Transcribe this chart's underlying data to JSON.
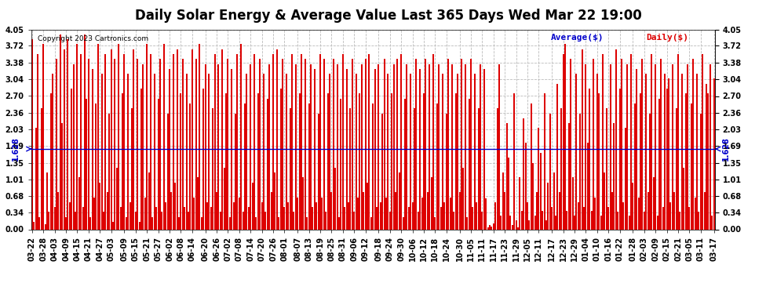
{
  "title": "Daily Solar Energy & Average Value Last 365 Days Wed Mar 22 19:00",
  "copyright": "Copyright 2023 Cartronics.com",
  "legend_average": "Average($)",
  "legend_daily": "Daily($)",
  "average_value": 1.628,
  "average_label": "1.628",
  "ylim": [
    0.0,
    4.05
  ],
  "yticks": [
    0.0,
    0.34,
    0.68,
    1.01,
    1.35,
    1.69,
    2.03,
    2.36,
    2.7,
    3.04,
    3.38,
    3.72,
    4.05
  ],
  "bar_color": "#dd0000",
  "average_line_color": "#0000cc",
  "background_color": "#ffffff",
  "grid_color": "#bbbbbb",
  "title_fontsize": 12,
  "tick_label_fontsize": 7,
  "x_labels": [
    "03-22",
    "03-28",
    "04-03",
    "04-09",
    "04-15",
    "04-21",
    "04-27",
    "05-03",
    "05-09",
    "05-15",
    "05-21",
    "05-27",
    "06-02",
    "06-08",
    "06-14",
    "06-20",
    "06-26",
    "07-02",
    "07-08",
    "07-14",
    "07-20",
    "07-26",
    "08-01",
    "08-07",
    "08-13",
    "08-19",
    "08-25",
    "08-31",
    "09-06",
    "09-12",
    "09-18",
    "09-24",
    "09-30",
    "10-06",
    "10-12",
    "10-18",
    "10-24",
    "10-30",
    "11-05",
    "11-11",
    "11-17",
    "11-23",
    "11-29",
    "12-05",
    "12-11",
    "12-17",
    "12-23",
    "12-29",
    "01-04",
    "01-10",
    "01-16",
    "01-22",
    "01-28",
    "02-03",
    "02-09",
    "02-15",
    "02-21",
    "03-05",
    "03-11",
    "03-17"
  ],
  "daily_values": [
    3.85,
    0.15,
    2.05,
    3.55,
    0.25,
    2.45,
    3.75,
    0.1,
    1.15,
    0.35,
    2.75,
    3.15,
    0.45,
    3.45,
    0.75,
    3.95,
    2.15,
    3.65,
    0.25,
    3.85,
    0.55,
    2.85,
    3.35,
    0.35,
    3.75,
    1.05,
    3.55,
    0.45,
    3.95,
    2.65,
    3.45,
    0.25,
    3.25,
    0.65,
    2.55,
    3.75,
    0.95,
    3.15,
    0.35,
    3.55,
    0.75,
    2.35,
    3.65,
    0.15,
    3.45,
    1.25,
    3.75,
    0.45,
    2.75,
    3.55,
    0.25,
    3.15,
    0.55,
    2.45,
    3.65,
    0.35,
    3.45,
    0.15,
    2.85,
    3.35,
    0.65,
    3.75,
    1.15,
    3.55,
    0.25,
    3.15,
    0.45,
    2.65,
    3.45,
    0.35,
    3.75,
    0.55,
    2.35,
    3.25,
    0.75,
    3.55,
    0.95,
    3.65,
    0.25,
    2.75,
    3.45,
    0.45,
    3.15,
    0.35,
    2.55,
    3.65,
    0.65,
    3.45,
    1.05,
    3.75,
    0.25,
    2.85,
    3.35,
    0.55,
    3.15,
    0.45,
    2.45,
    3.55,
    0.75,
    3.35,
    0.35,
    3.65,
    1.25,
    2.75,
    3.45,
    0.25,
    3.25,
    0.55,
    2.35,
    3.55,
    0.65,
    3.75,
    0.35,
    2.55,
    3.15,
    0.45,
    3.35,
    0.95,
    3.55,
    0.25,
    2.75,
    3.45,
    0.55,
    3.15,
    0.35,
    2.65,
    3.35,
    0.75,
    3.55,
    1.15,
    3.65,
    0.25,
    2.85,
    3.45,
    0.45,
    3.15,
    0.55,
    2.45,
    3.55,
    0.35,
    3.35,
    0.65,
    2.75,
    3.55,
    1.05,
    3.45,
    0.25,
    2.55,
    3.35,
    0.45,
    3.25,
    0.55,
    2.35,
    3.55,
    0.65,
    3.45,
    0.35,
    2.75,
    3.15,
    0.75,
    3.45,
    1.25,
    3.35,
    0.25,
    2.65,
    3.55,
    0.45,
    3.25,
    0.55,
    2.45,
    3.45,
    0.35,
    3.15,
    0.65,
    2.75,
    3.35,
    0.75,
    3.45,
    0.95,
    3.55,
    0.25,
    2.55,
    3.25,
    0.45,
    3.35,
    0.55,
    2.35,
    3.45,
    0.65,
    3.15,
    0.35,
    2.75,
    3.35,
    0.75,
    3.45,
    1.15,
    3.55,
    0.25,
    2.65,
    3.35,
    0.45,
    3.15,
    0.55,
    2.45,
    3.45,
    0.35,
    3.25,
    0.65,
    2.75,
    3.45,
    0.75,
    3.35,
    1.05,
    3.55,
    0.25,
    2.55,
    3.35,
    0.45,
    3.15,
    0.55,
    2.35,
    3.45,
    0.65,
    3.35,
    0.35,
    2.75,
    3.15,
    0.75,
    3.45,
    1.25,
    3.35,
    0.25,
    2.65,
    3.45,
    0.45,
    3.15,
    0.55,
    2.45,
    3.35,
    0.35,
    3.25,
    0.62,
    0.04,
    0.08,
    0.06,
    0.12,
    0.55,
    2.45,
    3.35,
    0.28,
    1.15,
    0.75,
    2.15,
    1.45,
    0.28,
    0.08,
    2.75,
    0.18,
    0.04,
    1.05,
    0.38,
    2.25,
    1.75,
    0.55,
    0.18,
    2.55,
    1.35,
    0.28,
    0.75,
    2.05,
    1.55,
    0.38,
    2.75,
    0.18,
    0.95,
    2.35,
    0.45,
    1.15,
    0.28,
    2.95,
    0.75,
    2.45,
    3.55,
    3.75,
    0.38,
    2.15,
    3.45,
    1.05,
    0.28,
    3.15,
    0.55,
    2.35,
    3.65,
    0.45,
    3.35,
    1.75,
    2.85,
    0.38,
    3.45,
    0.65,
    3.15,
    2.75,
    0.28,
    3.55,
    1.15,
    2.45,
    0.45,
    3.35,
    0.75,
    2.15,
    3.65,
    0.35,
    2.85,
    3.45,
    0.55,
    2.05,
    3.35,
    0.28,
    3.55,
    0.95,
    2.55,
    3.25,
    0.65,
    2.75,
    3.45,
    0.35,
    3.15,
    0.75,
    2.35,
    3.55,
    1.05,
    3.35,
    0.28,
    2.65,
    3.45,
    0.45,
    3.15,
    2.85,
    3.05,
    0.55,
    3.35,
    0.75,
    2.45,
    3.55,
    0.35,
    3.15,
    1.25,
    2.75,
    3.35,
    0.45,
    2.55,
    3.45,
    0.65,
    3.15,
    0.35,
    2.35,
    3.55,
    0.75,
    2.95,
    2.75,
    3.35,
    0.28,
    3.05
  ]
}
